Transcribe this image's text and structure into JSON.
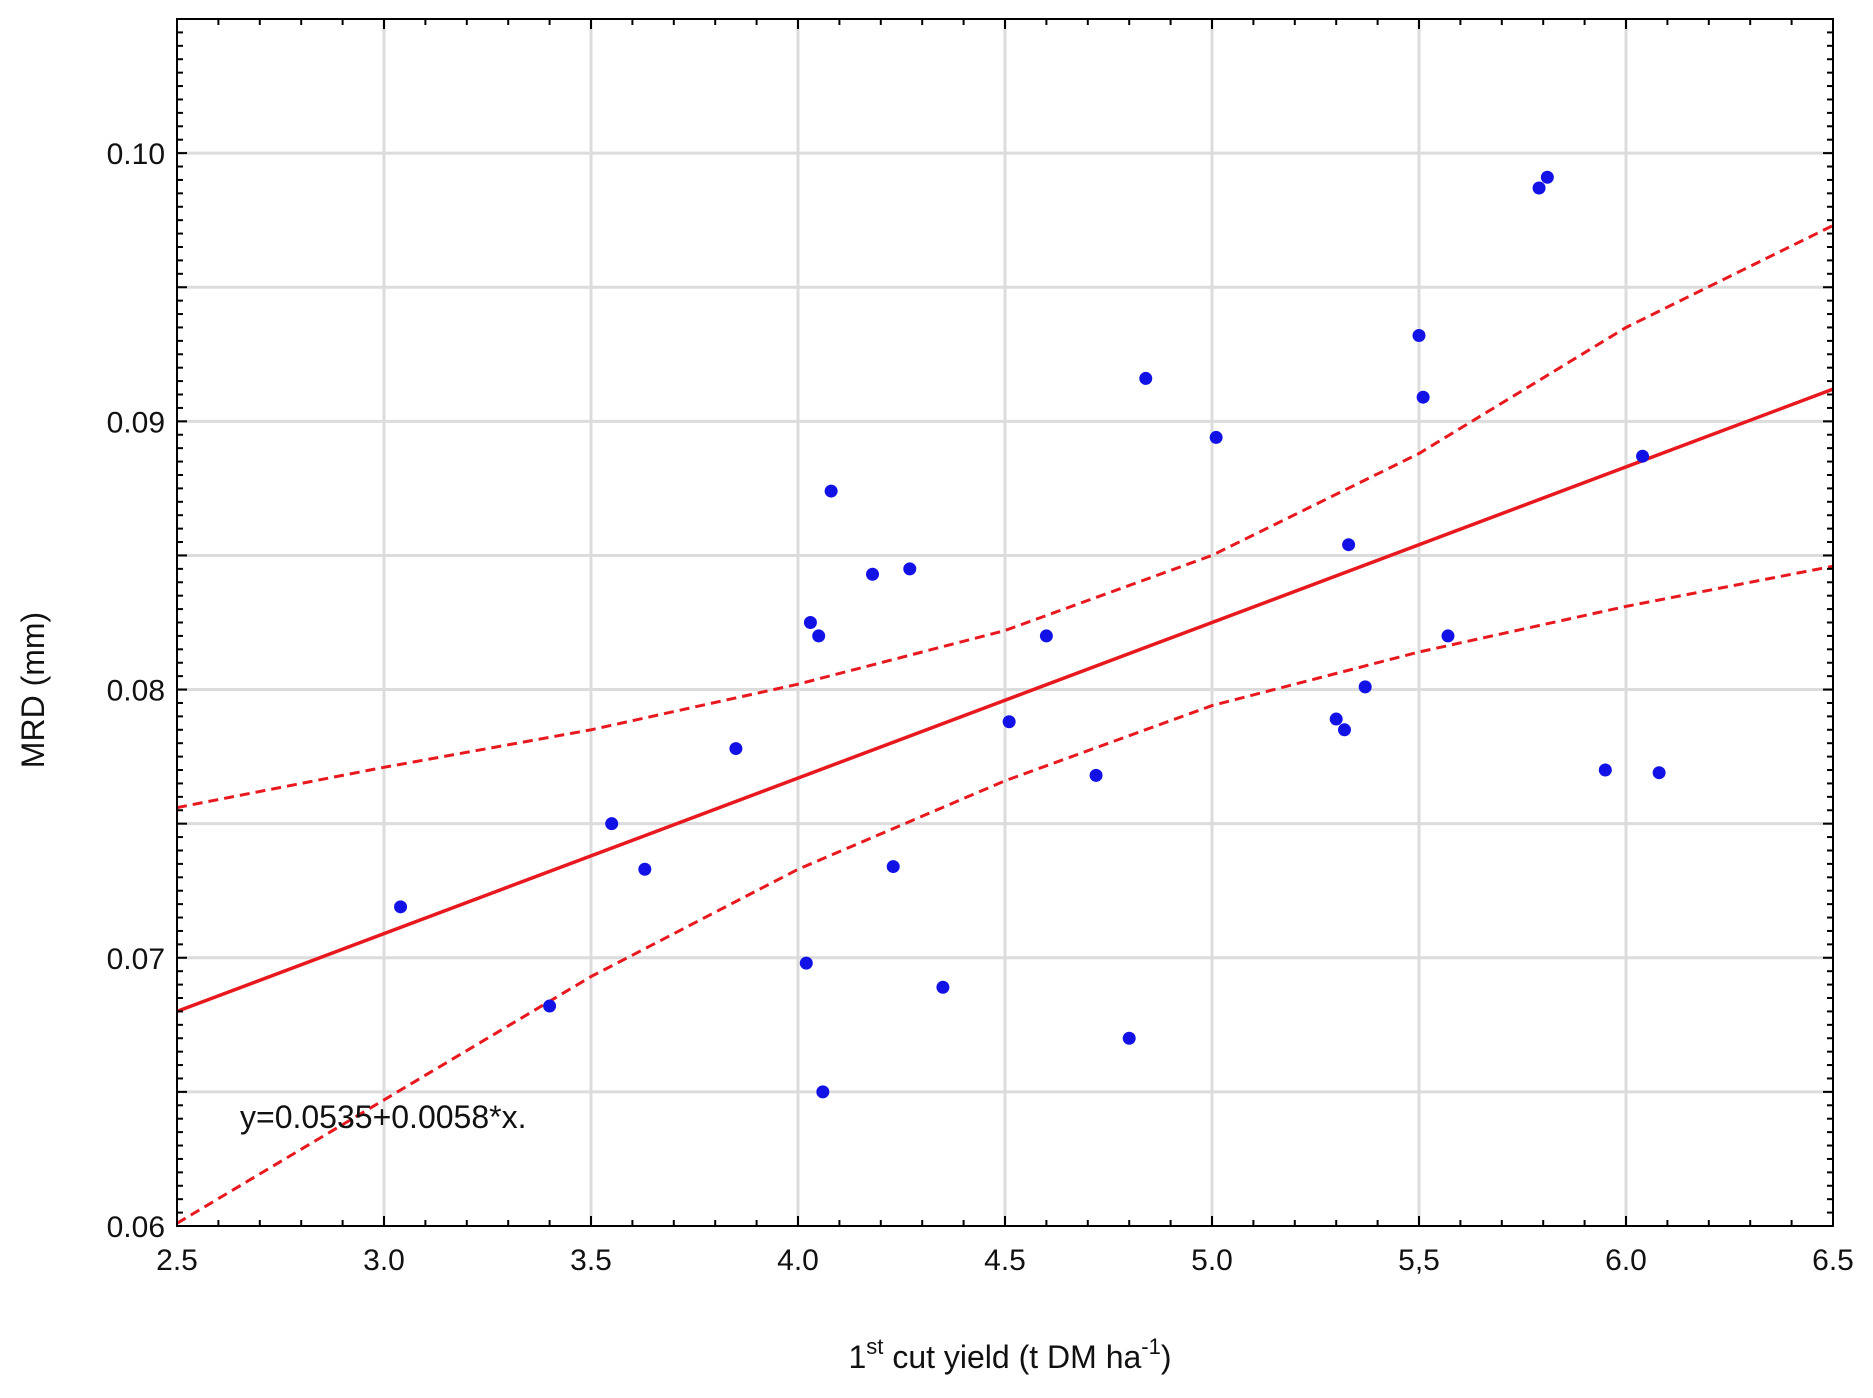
{
  "chart_data": {
    "type": "scatter",
    "xlabel_main": "1",
    "xlabel_sup": "st",
    "xlabel_mid": " cut yield (t DM ha",
    "xlabel_sup2": "-1",
    "xlabel_end": ")",
    "ylabel": "MRD (mm)",
    "xlim": [
      2.5,
      6.5
    ],
    "ylim": [
      0.06,
      0.105
    ],
    "x_ticks": [
      2.5,
      3.0,
      3.5,
      4.0,
      4.5,
      5.0,
      5.5,
      6.0,
      6.5
    ],
    "x_tick_labels": [
      "2.5",
      "3.0",
      "3.5",
      "4.0",
      "4.5",
      "5.0",
      "5,5",
      "6.0",
      "6.5"
    ],
    "y_ticks": [
      0.06,
      0.07,
      0.08,
      0.09,
      0.1
    ],
    "y_tick_labels": [
      "0.06",
      "0.07",
      "0.08",
      "0.09",
      "0.10"
    ],
    "minor_gridlines_y": [
      0.065,
      0.075,
      0.085,
      0.095
    ],
    "grid": true,
    "equation": "y=0.0535+0.0058*x.",
    "regression": {
      "intercept": 0.0535,
      "slope": 0.0058,
      "color": "#e8191e"
    },
    "confidence_band": {
      "x": [
        2.5,
        3.0,
        3.5,
        4.0,
        4.5,
        5.0,
        5.5,
        6.0,
        6.5
      ],
      "upper": [
        0.0756,
        0.0771,
        0.0785,
        0.0802,
        0.0822,
        0.085,
        0.0888,
        0.0935,
        0.0973
      ],
      "lower": [
        0.0601,
        0.0647,
        0.0693,
        0.0733,
        0.0766,
        0.0794,
        0.0814,
        0.0831,
        0.0846
      ],
      "color": "#e8191e"
    },
    "point_color": "#1212e6",
    "points": [
      {
        "x": 3.04,
        "y": 0.0719
      },
      {
        "x": 3.4,
        "y": 0.0682
      },
      {
        "x": 3.55,
        "y": 0.075
      },
      {
        "x": 3.63,
        "y": 0.0733
      },
      {
        "x": 3.85,
        "y": 0.0778
      },
      {
        "x": 4.02,
        "y": 0.0698
      },
      {
        "x": 4.03,
        "y": 0.0825
      },
      {
        "x": 4.05,
        "y": 0.082
      },
      {
        "x": 4.06,
        "y": 0.065
      },
      {
        "x": 4.08,
        "y": 0.0874
      },
      {
        "x": 4.18,
        "y": 0.0843
      },
      {
        "x": 4.23,
        "y": 0.0734
      },
      {
        "x": 4.27,
        "y": 0.0845
      },
      {
        "x": 4.35,
        "y": 0.0689
      },
      {
        "x": 4.51,
        "y": 0.0788
      },
      {
        "x": 4.6,
        "y": 0.082
      },
      {
        "x": 4.72,
        "y": 0.0768
      },
      {
        "x": 4.8,
        "y": 0.067
      },
      {
        "x": 4.84,
        "y": 0.0916
      },
      {
        "x": 5.01,
        "y": 0.0894
      },
      {
        "x": 5.3,
        "y": 0.0789
      },
      {
        "x": 5.32,
        "y": 0.0785
      },
      {
        "x": 5.33,
        "y": 0.0854
      },
      {
        "x": 5.37,
        "y": 0.0801
      },
      {
        "x": 5.5,
        "y": 0.0932
      },
      {
        "x": 5.51,
        "y": 0.0909
      },
      {
        "x": 5.57,
        "y": 0.082
      },
      {
        "x": 5.79,
        "y": 0.0987
      },
      {
        "x": 5.81,
        "y": 0.0991
      },
      {
        "x": 5.95,
        "y": 0.077
      },
      {
        "x": 6.04,
        "y": 0.0887
      },
      {
        "x": 6.08,
        "y": 0.0769
      }
    ]
  }
}
